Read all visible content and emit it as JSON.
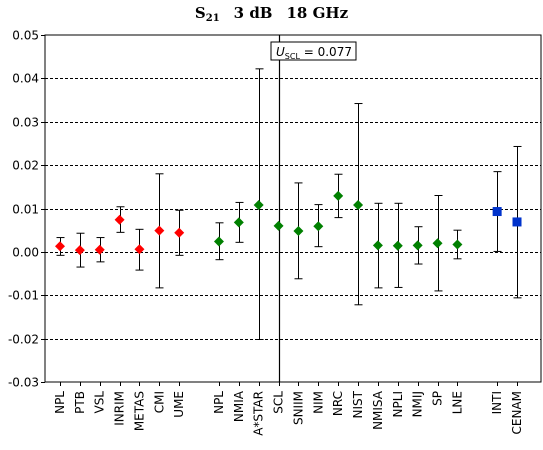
{
  "title": {
    "main": "S",
    "sub": "21",
    "level": "3 dB",
    "freq": "18 GHz"
  },
  "annotation": {
    "u": "U",
    "sub": "SCL",
    "rest": " = 0.077"
  },
  "chart_data": {
    "type": "scatter",
    "ylim": [
      -0.03,
      0.05
    ],
    "yticks": [
      "-0.03",
      "-0.02",
      "-0.01",
      "0.00",
      "0.01",
      "0.02",
      "0.03",
      "0.04",
      "0.05"
    ],
    "ytick_values": [
      -0.03,
      -0.02,
      -0.01,
      0.0,
      0.01,
      0.02,
      0.03,
      0.04,
      0.05
    ],
    "grid": "horizontal dashed",
    "reference_line": {
      "label": "SCL",
      "style": "vertical"
    },
    "groups": [
      {
        "marker": "diamond",
        "color": "#ff0000",
        "points": [
          {
            "label": "NPL",
            "value": 0.0013,
            "lo": -0.0008,
            "hi": 0.0033
          },
          {
            "label": "PTB",
            "value": 0.0004,
            "lo": -0.0035,
            "hi": 0.0043
          },
          {
            "label": "VSL",
            "value": 0.0005,
            "lo": -0.0023,
            "hi": 0.0033
          },
          {
            "label": "INRIM",
            "value": 0.0074,
            "lo": 0.0045,
            "hi": 0.0104
          },
          {
            "label": "METAS",
            "value": 0.0006,
            "lo": -0.0042,
            "hi": 0.0052
          },
          {
            "label": "CMI",
            "value": 0.0049,
            "lo": -0.0083,
            "hi": 0.018
          },
          {
            "label": "UME",
            "value": 0.0044,
            "lo": -0.0008,
            "hi": 0.0096
          }
        ]
      },
      {
        "marker": "diamond",
        "color": "#008000",
        "points": [
          {
            "label": "NPL",
            "value": 0.0024,
            "lo": -0.0018,
            "hi": 0.0067
          },
          {
            "label": "NMIA",
            "value": 0.0068,
            "lo": 0.0022,
            "hi": 0.0114
          },
          {
            "label": "A*STAR",
            "value": 0.0108,
            "lo": -0.0202,
            "hi": 0.0422
          },
          {
            "label": "SCL",
            "value": 0.006,
            "lo": null,
            "hi": null
          },
          {
            "label": "SNIIM",
            "value": 0.0048,
            "lo": -0.0062,
            "hi": 0.0159
          },
          {
            "label": "NIM",
            "value": 0.0059,
            "lo": 0.0012,
            "hi": 0.0109
          },
          {
            "label": "NRC",
            "value": 0.0129,
            "lo": 0.0079,
            "hi": 0.0179
          },
          {
            "label": "NIST",
            "value": 0.0108,
            "lo": -0.0122,
            "hi": 0.0342
          },
          {
            "label": "NMISA",
            "value": 0.0015,
            "lo": -0.0083,
            "hi": 0.0112
          },
          {
            "label": "NPLI",
            "value": 0.0014,
            "lo": -0.0082,
            "hi": 0.0112
          },
          {
            "label": "NMIJ",
            "value": 0.0015,
            "lo": -0.0028,
            "hi": 0.0058
          },
          {
            "label": "SP",
            "value": 0.002,
            "lo": -0.009,
            "hi": 0.013
          },
          {
            "label": "LNE",
            "value": 0.0017,
            "lo": -0.0016,
            "hi": 0.005
          }
        ]
      },
      {
        "marker": "square",
        "color": "#0033cc",
        "points": [
          {
            "label": "INTI",
            "value": 0.0093,
            "lo": 0.0001,
            "hi": 0.0185
          },
          {
            "label": "CENAM",
            "value": 0.0069,
            "lo": -0.0106,
            "hi": 0.0243
          }
        ]
      }
    ]
  }
}
